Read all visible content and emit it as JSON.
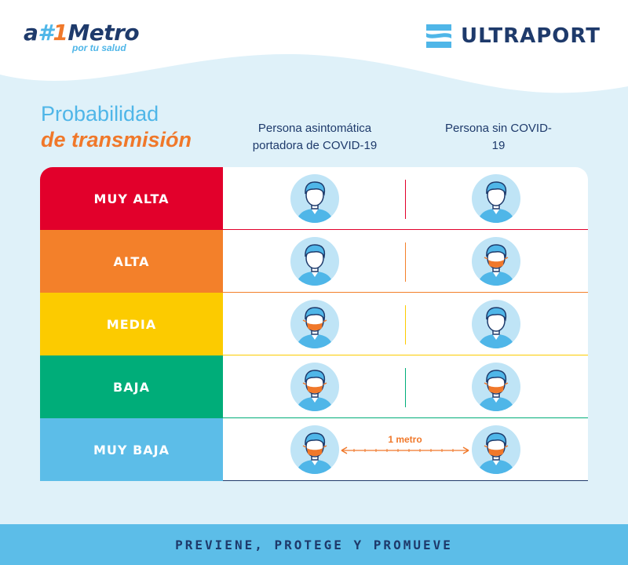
{
  "brand_left": {
    "prefix": "a",
    "hash": "#",
    "one": "1",
    "word": "Metro",
    "tagline": "por tu salud"
  },
  "brand_right": {
    "name": "ULTRAPORT"
  },
  "title": {
    "line1": "Probabilidad",
    "line2": "de transmisión"
  },
  "columns": {
    "carrier": "Persona asintomática portadora de COVID-19",
    "healthy": "Persona sin COVID-19"
  },
  "rows": [
    {
      "label": "MUY ALTA",
      "color": "#e2002b",
      "carrier_mask": false,
      "healthy_mask": false
    },
    {
      "label": "ALTA",
      "color": "#f3802a",
      "carrier_mask": false,
      "healthy_mask": true
    },
    {
      "label": "MEDIA",
      "color": "#fccb00",
      "carrier_mask": true,
      "healthy_mask": false
    },
    {
      "label": "BAJA",
      "color": "#00ad79",
      "carrier_mask": true,
      "healthy_mask": true
    },
    {
      "label": "MUY BAJA",
      "color": "#5cbde8",
      "carrier_mask": true,
      "healthy_mask": true
    }
  ],
  "distance_label": "1 metro",
  "footer": "PREVIENE, PROTEGE Y PROMUEVE",
  "colors": {
    "navy": "#1e3a6b",
    "sky": "#4fb6e8",
    "orange": "#f0782a",
    "avatar_bg": "#bfe4f6",
    "page_bg": "#dff1f9"
  }
}
